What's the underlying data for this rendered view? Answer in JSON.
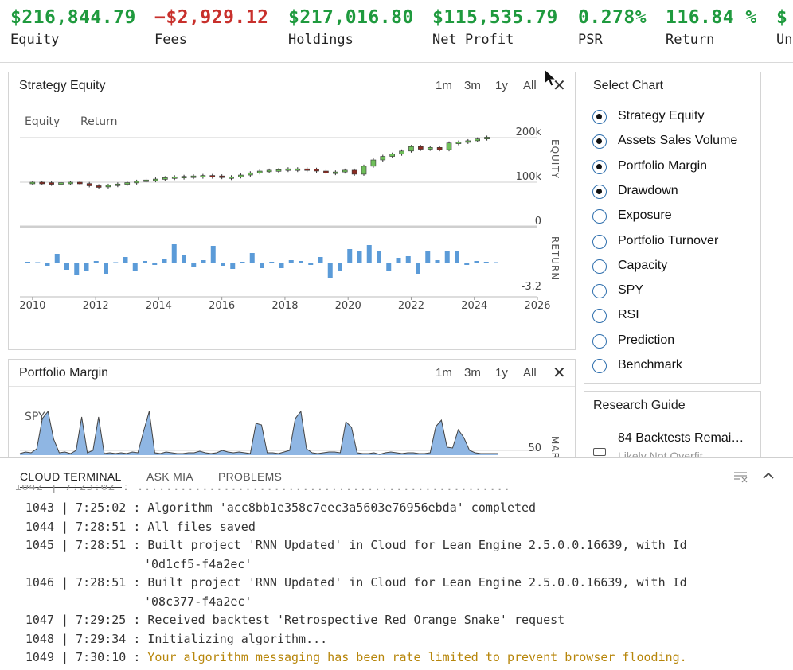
{
  "stats": [
    {
      "value": "$216,844.79",
      "label": "Equity",
      "tone": "pos"
    },
    {
      "value": "−$2,929.12",
      "label": "Fees",
      "tone": "neg"
    },
    {
      "value": "$217,016.80",
      "label": "Holdings",
      "tone": "pos"
    },
    {
      "value": "$115,535.79",
      "label": "Net Profit",
      "tone": "pos"
    },
    {
      "value": "0.278%",
      "label": "PSR",
      "tone": "pos"
    },
    {
      "value": "116.84 %",
      "label": "Return",
      "tone": "pos"
    },
    {
      "value": "$",
      "label": "Un",
      "tone": "pos"
    }
  ],
  "panels": {
    "strategy_equity": {
      "title": "Strategy Equity",
      "ranges": [
        "1m",
        "3m",
        "1y",
        "All"
      ],
      "close": "✕",
      "legend": [
        "Equity",
        "Return"
      ]
    },
    "portfolio_margin": {
      "title": "Portfolio Margin",
      "ranges": [
        "1m",
        "3m",
        "1y",
        "All"
      ],
      "close": "✕",
      "legend": [
        "SPY"
      ],
      "right_tick": "50",
      "axis_name": "MAR"
    }
  },
  "select_chart": {
    "title": "Select Chart",
    "options": [
      {
        "label": "Strategy Equity",
        "checked": true
      },
      {
        "label": "Assets Sales Volume",
        "checked": true
      },
      {
        "label": "Portfolio Margin",
        "checked": true
      },
      {
        "label": "Drawdown",
        "checked": true
      },
      {
        "label": "Exposure",
        "checked": false
      },
      {
        "label": "Portfolio Turnover",
        "checked": false
      },
      {
        "label": "Capacity",
        "checked": false
      },
      {
        "label": "SPY",
        "checked": false
      },
      {
        "label": "RSI",
        "checked": false
      },
      {
        "label": "Prediction",
        "checked": false
      },
      {
        "label": "Benchmark",
        "checked": false
      }
    ]
  },
  "research_guide": {
    "title": "Research Guide",
    "item": "84 Backtests Remai…",
    "item_sub": "Likely Not Overfit"
  },
  "terminal": {
    "tabs": [
      "CLOUD TERMINAL",
      "ASK MIA",
      "PROBLEMS"
    ],
    "active_tab": "CLOUD TERMINAL",
    "lines": [
      {
        "num": "1043",
        "time": "7:25:02",
        "text": "Algorithm 'acc8bb1e358c7eec3a5603e76956ebda' completed",
        "warn": false
      },
      {
        "num": "1044",
        "time": "7:28:51",
        "text": "All files saved",
        "warn": false
      },
      {
        "num": "1045",
        "time": "7:28:51",
        "text": "Built project 'RNN Updated' in Cloud for Lean Engine 2.5.0.0.16639, with Id",
        "cont": "'0d1cf5-f4a2ec'",
        "warn": false
      },
      {
        "num": "1046",
        "time": "7:28:51",
        "text": "Built project 'RNN Updated' in Cloud for Lean Engine 2.5.0.0.16639, with Id",
        "cont": "'08c377-f4a2ec'",
        "warn": false
      },
      {
        "num": "1047",
        "time": "7:29:25",
        "text": "Received backtest 'Retrospective Red Orange Snake' request",
        "warn": false
      },
      {
        "num": "1048",
        "time": "7:29:34",
        "text": "Initializing algorithm...",
        "warn": false
      },
      {
        "num": "1049",
        "time": "7:30:10",
        "text": "Your algorithm messaging has been rate limited to prevent browser flooding.",
        "warn": true
      }
    ]
  },
  "colors": {
    "positive": "#1f9a3e",
    "negative": "#c8302c",
    "candle_up": "#6fbf5a",
    "candle_down": "#8b2b22",
    "return_bar": "#5b9bd8",
    "warning_text": "#b7860b",
    "radio_border": "#2f6fad"
  },
  "chart_data": [
    {
      "type": "candlestick",
      "title": "Strategy Equity",
      "series_name": "Equity",
      "y_axis_label": "EQUITY",
      "yticks": [
        "200k",
        "100k",
        "0"
      ],
      "ylim": [
        0,
        225000
      ],
      "x_range": [
        2009.6,
        2026
      ],
      "xticks": [
        "2010",
        "2012",
        "2014",
        "2016",
        "2018",
        "2020",
        "2022",
        "2024",
        "2026"
      ],
      "x": [
        2010.0,
        2010.3,
        2010.6,
        2010.9,
        2011.2,
        2011.5,
        2011.8,
        2012.1,
        2012.4,
        2012.7,
        2013.0,
        2013.3,
        2013.6,
        2013.9,
        2014.2,
        2014.5,
        2014.8,
        2015.1,
        2015.4,
        2015.7,
        2016.0,
        2016.3,
        2016.6,
        2016.9,
        2017.2,
        2017.5,
        2017.8,
        2018.1,
        2018.4,
        2018.7,
        2019.0,
        2019.3,
        2019.6,
        2019.9,
        2020.2,
        2020.5,
        2020.8,
        2021.1,
        2021.4,
        2021.7,
        2022.0,
        2022.3,
        2022.6,
        2022.9,
        2023.2,
        2023.5,
        2023.8,
        2024.1,
        2024.4
      ],
      "close": [
        100000,
        99000,
        97000,
        99000,
        100000,
        97000,
        92000,
        91000,
        93000,
        96000,
        99000,
        102000,
        105000,
        107000,
        110000,
        112000,
        113000,
        114000,
        115000,
        114000,
        111000,
        112000,
        116000,
        121000,
        125000,
        127000,
        128000,
        130000,
        130000,
        129000,
        125000,
        121000,
        123000,
        127000,
        118000,
        136000,
        150000,
        158000,
        163000,
        170000,
        180000,
        174000,
        178000,
        173000,
        188000,
        190000,
        193000,
        197000,
        201000
      ],
      "open": [
        100000,
        100000,
        99000,
        97000,
        99000,
        100000,
        97000,
        92000,
        91000,
        93000,
        96000,
        99000,
        102000,
        105000,
        107000,
        110000,
        112000,
        113000,
        114000,
        115000,
        114000,
        111000,
        112000,
        116000,
        121000,
        125000,
        127000,
        128000,
        130000,
        130000,
        129000,
        125000,
        121000,
        123000,
        127000,
        118000,
        136000,
        150000,
        158000,
        163000,
        170000,
        180000,
        174000,
        178000,
        173000,
        188000,
        190000,
        193000,
        197000
      ]
    },
    {
      "type": "bar",
      "series_name": "Return",
      "y_axis_label": "RETURN",
      "yticks": [
        "-3.2"
      ],
      "values": [
        0.2,
        0.1,
        -0.3,
        1.2,
        -0.8,
        -1.4,
        -1.0,
        0.3,
        -1.3,
        0.1,
        0.8,
        -0.9,
        0.3,
        -0.2,
        0.5,
        2.4,
        1.0,
        -0.5,
        0.4,
        2.2,
        -0.3,
        -0.7,
        0.2,
        1.3,
        -0.6,
        0.2,
        -0.6,
        0.4,
        0.3,
        -0.2,
        0.8,
        -1.8,
        -1.0,
        1.8,
        1.6,
        2.3,
        1.6,
        -1.0,
        0.7,
        0.9,
        -1.3,
        1.6,
        0.4,
        1.5,
        1.6,
        -0.2,
        0.3,
        0.2,
        0.1
      ]
    },
    {
      "type": "area",
      "title": "Portfolio Margin",
      "series_name": "SPY",
      "yticks": [
        "50"
      ],
      "x_range": [
        2009.6,
        2026
      ],
      "values": [
        2,
        4,
        3,
        8,
        46,
        55,
        20,
        3,
        4,
        2,
        6,
        48,
        3,
        6,
        48,
        2,
        3,
        2,
        3,
        2,
        4,
        3,
        30,
        55,
        3,
        2,
        4,
        3,
        2,
        2,
        3,
        3,
        5,
        3,
        2,
        3,
        6,
        4,
        3,
        4,
        3,
        2,
        40,
        38,
        3,
        3,
        2,
        4,
        6,
        46,
        55,
        8,
        3,
        2,
        3,
        4,
        4,
        3,
        42,
        35,
        3,
        2,
        2,
        3,
        1,
        3,
        4,
        3,
        2,
        3,
        3,
        2,
        2,
        3,
        36,
        44,
        10,
        9,
        32,
        22,
        6,
        3,
        2,
        2,
        2,
        2
      ]
    }
  ]
}
